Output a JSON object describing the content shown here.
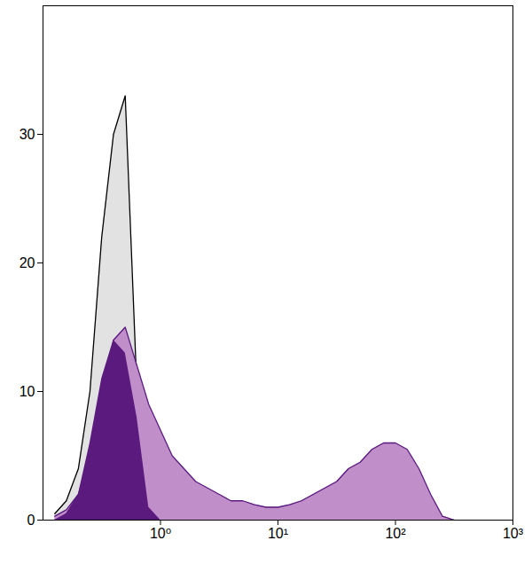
{
  "chart_data": {
    "type": "area",
    "log": "x",
    "grid": false,
    "tick_labels": true,
    "xlim": [
      0.1,
      1000
    ],
    "ylim": [
      0,
      40
    ],
    "xticks": [
      {
        "value": 1,
        "label": "10⁰"
      },
      {
        "value": 10,
        "label": "10¹"
      },
      {
        "value": 100,
        "label": "10²"
      },
      {
        "value": 1000,
        "label": "10³"
      }
    ],
    "yticks": [
      0,
      10,
      20,
      30
    ],
    "x": [
      0.126,
      0.158,
      0.2,
      0.251,
      0.316,
      0.398,
      0.501,
      0.631,
      0.794,
      1,
      1.259,
      1.585,
      1.995,
      2.512,
      3.162,
      3.981,
      5.012,
      6.31,
      7.943,
      10,
      12.59,
      15.85,
      19.95,
      25.12,
      31.62,
      39.81,
      50.12,
      63.1,
      79.43,
      100,
      125.9,
      158.5,
      199.5,
      251.2,
      316.2
    ],
    "series": [
      {
        "type": "area",
        "color": "#e2e2e2",
        "values": [
          0.5,
          1.5,
          4,
          10,
          22,
          30,
          33,
          10,
          0.5,
          0,
          0,
          0,
          0,
          0,
          0,
          0,
          0,
          0,
          0,
          0,
          0,
          0,
          0,
          0,
          0,
          0,
          0,
          0,
          0,
          0,
          0,
          0,
          0,
          0,
          0
        ]
      },
      {
        "type": "line",
        "color": "#000000",
        "values": [
          0.5,
          1.5,
          4,
          10,
          22,
          30,
          33,
          10,
          0.5,
          0,
          0,
          0,
          0,
          0,
          0,
          0,
          0,
          0,
          0,
          0,
          0,
          0,
          0,
          0,
          0,
          0,
          0,
          0,
          0,
          0,
          0,
          0,
          0,
          0,
          0
        ]
      },
      {
        "type": "area",
        "color": "#c08ec9",
        "values": [
          0.3,
          0.8,
          2,
          5,
          9,
          14,
          15,
          12,
          9,
          7,
          5,
          4,
          3,
          2.5,
          2,
          1.5,
          1.5,
          1.2,
          1,
          1,
          1.2,
          1.5,
          2,
          2.5,
          3,
          4,
          4.5,
          5.5,
          6,
          6,
          5.5,
          4,
          2,
          0.3,
          0
        ]
      },
      {
        "type": "line",
        "color": "#5a1a80",
        "values": [
          0.3,
          0.8,
          2,
          5,
          9,
          14,
          15,
          12,
          9,
          7,
          5,
          4,
          3,
          2.5,
          2,
          1.5,
          1.5,
          1.2,
          1,
          1,
          1.2,
          1.5,
          2,
          2.5,
          3,
          4,
          4.5,
          5.5,
          6,
          6,
          5.5,
          4,
          2,
          0.3,
          0
        ]
      },
      {
        "type": "area",
        "color": "#5b1a7e",
        "values": [
          0,
          0.5,
          2,
          6,
          11,
          14,
          13,
          8,
          1,
          0,
          0,
          0,
          0,
          0,
          0,
          0,
          0,
          0,
          0,
          0,
          0,
          0,
          0,
          0,
          0,
          0,
          0,
          0,
          0,
          0,
          0,
          0,
          0,
          0,
          0
        ]
      }
    ]
  }
}
